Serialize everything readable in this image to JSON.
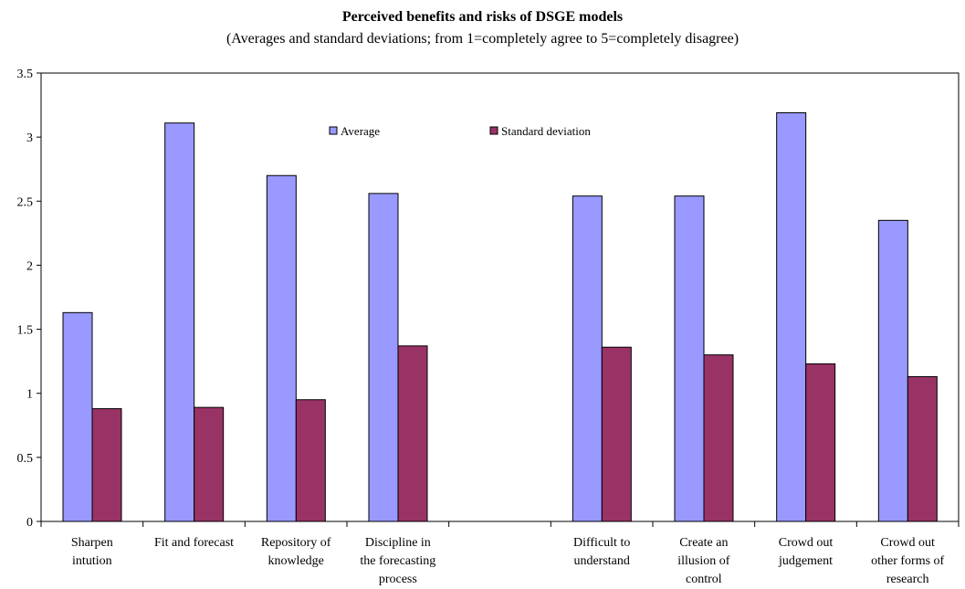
{
  "chart_data": {
    "type": "bar",
    "title": "Perceived benefits and risks of DSGE models",
    "subtitle": "(Averages and standard deviations; from 1=completely agree to 5=completely disagree)",
    "xlabel": "",
    "ylabel": "",
    "ylim": [
      0,
      3.5
    ],
    "yticks": [
      "0",
      "0.5",
      "1",
      "1.5",
      "2",
      "2.5",
      "3",
      "3.5"
    ],
    "grid": false,
    "legend_position": "top-center",
    "categories": [
      [
        "Sharpen",
        "intution"
      ],
      [
        "Fit and forecast"
      ],
      [
        "Repository of",
        "knowledge"
      ],
      [
        "Discipline in",
        "the forecasting",
        "process"
      ],
      [],
      [
        "Difficult to",
        "understand"
      ],
      [
        "Create an",
        "illusion of",
        "control"
      ],
      [
        "Crowd out",
        "judgement"
      ],
      [
        "Crowd out",
        "other forms of",
        "research"
      ]
    ],
    "series": [
      {
        "name": "Average",
        "color": "#9999ff",
        "values": [
          1.63,
          3.11,
          2.7,
          2.56,
          null,
          2.54,
          2.54,
          3.19,
          2.35
        ]
      },
      {
        "name": "Standard deviation",
        "color": "#993366",
        "values": [
          0.88,
          0.89,
          0.95,
          1.37,
          null,
          1.36,
          1.3,
          1.23,
          1.13
        ]
      }
    ]
  }
}
